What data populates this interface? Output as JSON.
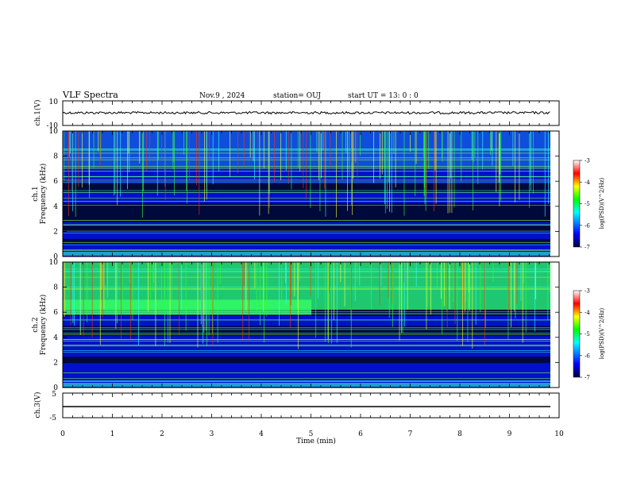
{
  "header": {
    "title": "VLF Spectra",
    "date": "Nov.9 , 2024",
    "station": "station= OUJ",
    "start": "start UT = 13: 0 : 0"
  },
  "chart_data": [
    {
      "type": "line",
      "panel": "ch1-waveform",
      "ylabel": "ch.1(V)",
      "yticks": [
        "10",
        "-10"
      ],
      "ylim": [
        -10,
        10
      ]
    },
    {
      "type": "heatmap",
      "panel": "ch1-spectrogram",
      "ylabel_top": "ch.1",
      "ylabel": "Frequency (kHz)",
      "yticks": [
        "0",
        "2",
        "4",
        "6",
        "8",
        "10"
      ],
      "ylim": [
        0,
        10
      ],
      "colorbar": {
        "label": "log(PSD)(V^2/Hz)",
        "ticks": [
          "-3",
          "-4",
          "-5",
          "-6",
          "-7"
        ],
        "range": [
          -7,
          -3
        ],
        "colors": [
          "#000040",
          "#0000ff",
          "#00ffff",
          "#00ff00",
          "#ffff00",
          "#ff0000",
          "#ffffff"
        ]
      }
    },
    {
      "type": "heatmap",
      "panel": "ch2-spectrogram",
      "ylabel_top": "ch.2",
      "ylabel": "Frequency (kHz)",
      "yticks": [
        "0",
        "2",
        "4",
        "6",
        "8",
        "10"
      ],
      "ylim": [
        0,
        10
      ],
      "colorbar": {
        "label": "log(PSD)(V^2/Hz)",
        "ticks": [
          "-3",
          "-4",
          "-5",
          "-6",
          "-7"
        ],
        "range": [
          -7,
          -3
        ]
      }
    },
    {
      "type": "line",
      "panel": "ch3-waveform",
      "ylabel": "ch.3(V)",
      "yticks": [
        "5",
        "-5"
      ],
      "ylim": [
        -5,
        5
      ]
    }
  ],
  "xaxis": {
    "label": "Time (min)",
    "ticks": [
      "0",
      "1",
      "2",
      "3",
      "4",
      "5",
      "6",
      "7",
      "8",
      "9",
      "10"
    ],
    "range": [
      0,
      10
    ]
  }
}
